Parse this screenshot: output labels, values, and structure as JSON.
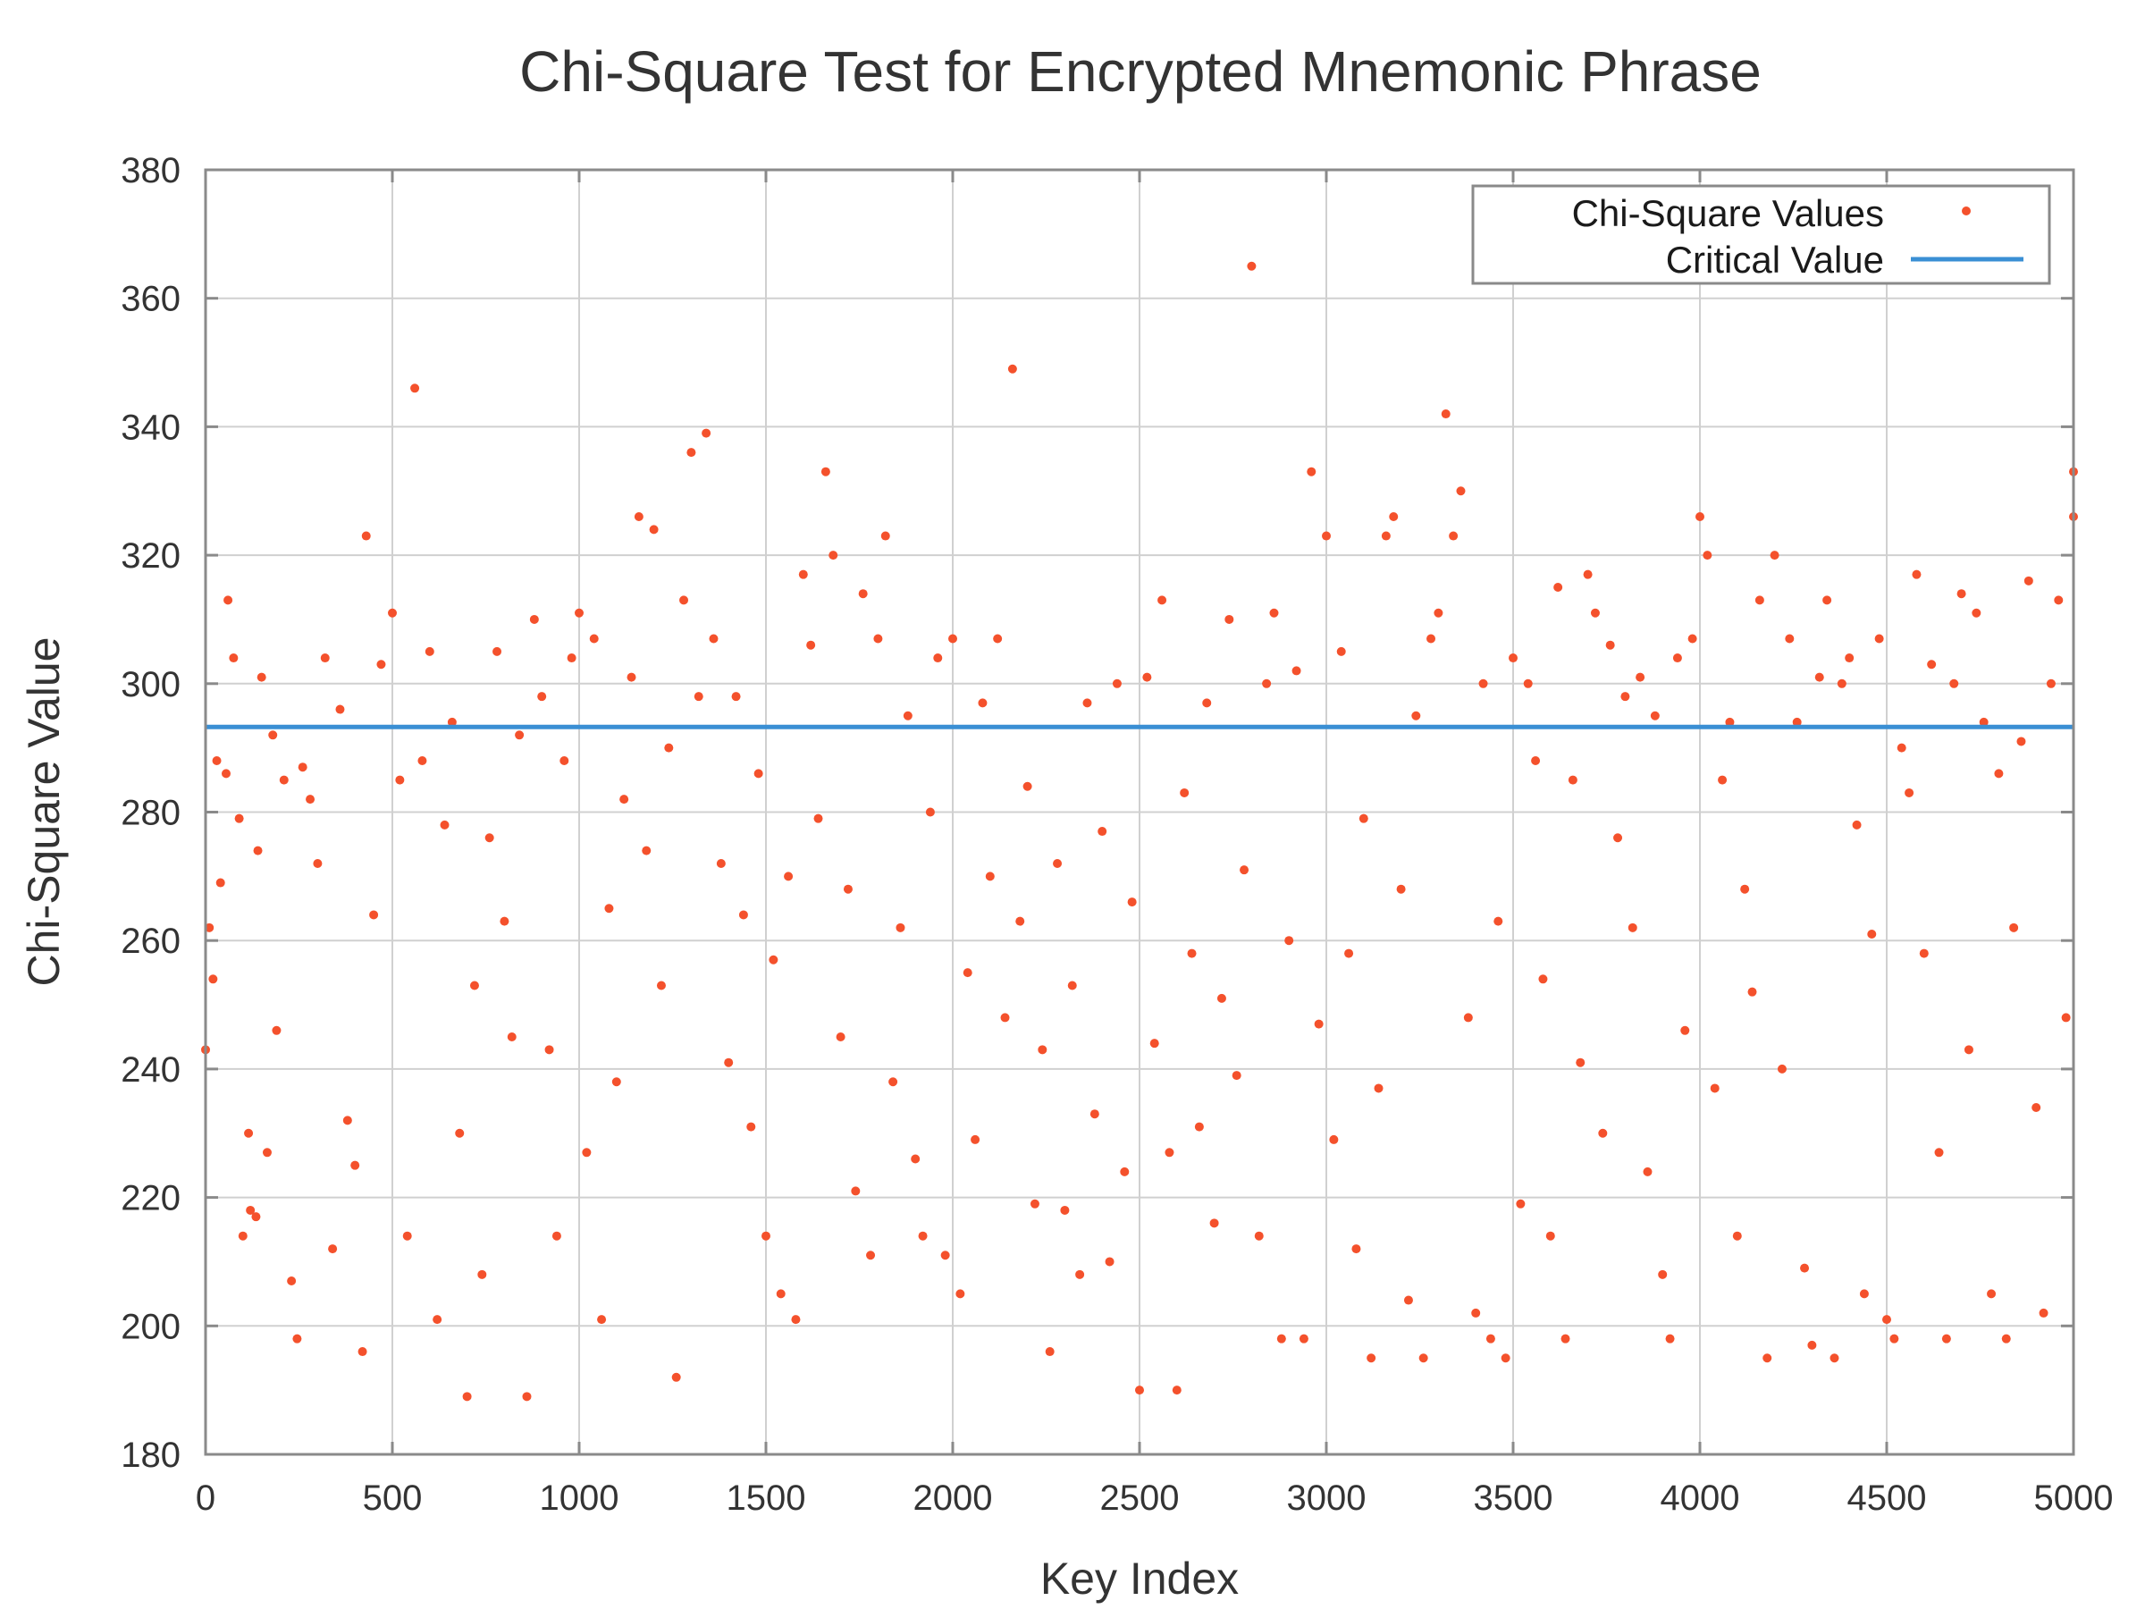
{
  "chart_data": {
    "type": "scatter",
    "title": "Chi-Square Test for Encrypted Mnemonic Phrase",
    "xlabel": "Key Index",
    "ylabel": "Chi-Square Value",
    "xlim": [
      0,
      5000
    ],
    "ylim": [
      180,
      380
    ],
    "xticks": [
      "0",
      "500",
      "1000",
      "1500",
      "2000",
      "2500",
      "3000",
      "3500",
      "4000",
      "4500",
      "5000"
    ],
    "yticks": [
      "180",
      "200",
      "220",
      "240",
      "260",
      "280",
      "300",
      "320",
      "340",
      "360",
      "380"
    ],
    "grid": true,
    "legend_position": "top-right",
    "colors": {
      "points": "#f4512c",
      "critical": "#3a8fd4"
    },
    "series": [
      {
        "name": "Chi-Square Values",
        "kind": "points",
        "note_values": "representative sample of the 5000 plotted points",
        "points": [
          [
            0,
            243
          ],
          [
            10,
            262
          ],
          [
            20,
            254
          ],
          [
            30,
            288
          ],
          [
            40,
            269
          ],
          [
            55,
            286
          ],
          [
            60,
            313
          ],
          [
            75,
            304
          ],
          [
            90,
            279
          ],
          [
            100,
            214
          ],
          [
            115,
            230
          ],
          [
            120,
            218
          ],
          [
            135,
            217
          ],
          [
            140,
            274
          ],
          [
            150,
            301
          ],
          [
            165,
            227
          ],
          [
            180,
            292
          ],
          [
            190,
            246
          ],
          [
            210,
            285
          ],
          [
            230,
            207
          ],
          [
            245,
            198
          ],
          [
            260,
            287
          ],
          [
            280,
            282
          ],
          [
            300,
            272
          ],
          [
            320,
            304
          ],
          [
            340,
            212
          ],
          [
            360,
            296
          ],
          [
            380,
            232
          ],
          [
            400,
            225
          ],
          [
            420,
            196
          ],
          [
            430,
            323
          ],
          [
            450,
            264
          ],
          [
            470,
            303
          ],
          [
            500,
            311
          ],
          [
            520,
            285
          ],
          [
            540,
            214
          ],
          [
            560,
            346
          ],
          [
            580,
            288
          ],
          [
            600,
            305
          ],
          [
            620,
            201
          ],
          [
            640,
            278
          ],
          [
            660,
            294
          ],
          [
            680,
            230
          ],
          [
            700,
            189
          ],
          [
            720,
            253
          ],
          [
            740,
            208
          ],
          [
            760,
            276
          ],
          [
            780,
            305
          ],
          [
            800,
            263
          ],
          [
            820,
            245
          ],
          [
            840,
            292
          ],
          [
            860,
            189
          ],
          [
            880,
            310
          ],
          [
            900,
            298
          ],
          [
            920,
            243
          ],
          [
            940,
            214
          ],
          [
            960,
            288
          ],
          [
            980,
            304
          ],
          [
            1000,
            311
          ],
          [
            1020,
            227
          ],
          [
            1040,
            307
          ],
          [
            1060,
            201
          ],
          [
            1080,
            265
          ],
          [
            1100,
            238
          ],
          [
            1120,
            282
          ],
          [
            1140,
            301
          ],
          [
            1160,
            326
          ],
          [
            1180,
            274
          ],
          [
            1200,
            324
          ],
          [
            1220,
            253
          ],
          [
            1240,
            290
          ],
          [
            1260,
            192
          ],
          [
            1280,
            313
          ],
          [
            1300,
            336
          ],
          [
            1320,
            298
          ],
          [
            1340,
            339
          ],
          [
            1360,
            307
          ],
          [
            1380,
            272
          ],
          [
            1400,
            241
          ],
          [
            1420,
            298
          ],
          [
            1440,
            264
          ],
          [
            1460,
            231
          ],
          [
            1480,
            286
          ],
          [
            1500,
            214
          ],
          [
            1520,
            257
          ],
          [
            1540,
            205
          ],
          [
            1560,
            270
          ],
          [
            1580,
            201
          ],
          [
            1600,
            317
          ],
          [
            1620,
            306
          ],
          [
            1640,
            279
          ],
          [
            1660,
            333
          ],
          [
            1680,
            320
          ],
          [
            1700,
            245
          ],
          [
            1720,
            268
          ],
          [
            1740,
            221
          ],
          [
            1760,
            314
          ],
          [
            1780,
            211
          ],
          [
            1800,
            307
          ],
          [
            1820,
            323
          ],
          [
            1840,
            238
          ],
          [
            1860,
            262
          ],
          [
            1880,
            295
          ],
          [
            1900,
            226
          ],
          [
            1920,
            214
          ],
          [
            1940,
            280
          ],
          [
            1960,
            304
          ],
          [
            1980,
            211
          ],
          [
            2000,
            307
          ],
          [
            2020,
            205
          ],
          [
            2040,
            255
          ],
          [
            2060,
            229
          ],
          [
            2080,
            297
          ],
          [
            2100,
            270
          ],
          [
            2120,
            307
          ],
          [
            2140,
            248
          ],
          [
            2160,
            349
          ],
          [
            2180,
            263
          ],
          [
            2200,
            284
          ],
          [
            2220,
            219
          ],
          [
            2240,
            243
          ],
          [
            2260,
            196
          ],
          [
            2280,
            272
          ],
          [
            2300,
            218
          ],
          [
            2320,
            253
          ],
          [
            2340,
            208
          ],
          [
            2360,
            297
          ],
          [
            2380,
            233
          ],
          [
            2400,
            277
          ],
          [
            2420,
            210
          ],
          [
            2440,
            300
          ],
          [
            2460,
            224
          ],
          [
            2480,
            266
          ],
          [
            2500,
            190
          ],
          [
            2520,
            301
          ],
          [
            2540,
            244
          ],
          [
            2560,
            313
          ],
          [
            2580,
            227
          ],
          [
            2600,
            190
          ],
          [
            2620,
            283
          ],
          [
            2640,
            258
          ],
          [
            2660,
            231
          ],
          [
            2680,
            297
          ],
          [
            2700,
            216
          ],
          [
            2720,
            251
          ],
          [
            2740,
            310
          ],
          [
            2760,
            239
          ],
          [
            2780,
            271
          ],
          [
            2800,
            365
          ],
          [
            2820,
            214
          ],
          [
            2840,
            300
          ],
          [
            2860,
            311
          ],
          [
            2880,
            198
          ],
          [
            2900,
            260
          ],
          [
            2920,
            302
          ],
          [
            2940,
            198
          ],
          [
            2960,
            333
          ],
          [
            2980,
            247
          ],
          [
            3000,
            323
          ],
          [
            3020,
            229
          ],
          [
            3040,
            305
          ],
          [
            3060,
            258
          ],
          [
            3080,
            212
          ],
          [
            3100,
            279
          ],
          [
            3120,
            195
          ],
          [
            3140,
            237
          ],
          [
            3160,
            323
          ],
          [
            3180,
            326
          ],
          [
            3200,
            268
          ],
          [
            3220,
            204
          ],
          [
            3240,
            295
          ],
          [
            3260,
            195
          ],
          [
            3280,
            307
          ],
          [
            3300,
            311
          ],
          [
            3320,
            342
          ],
          [
            3340,
            323
          ],
          [
            3360,
            330
          ],
          [
            3380,
            248
          ],
          [
            3400,
            202
          ],
          [
            3420,
            300
          ],
          [
            3440,
            198
          ],
          [
            3460,
            263
          ],
          [
            3480,
            195
          ],
          [
            3500,
            304
          ],
          [
            3520,
            219
          ],
          [
            3540,
            300
          ],
          [
            3560,
            288
          ],
          [
            3580,
            254
          ],
          [
            3600,
            214
          ],
          [
            3620,
            315
          ],
          [
            3640,
            198
          ],
          [
            3660,
            285
          ],
          [
            3680,
            241
          ],
          [
            3700,
            317
          ],
          [
            3720,
            311
          ],
          [
            3740,
            230
          ],
          [
            3760,
            306
          ],
          [
            3780,
            276
          ],
          [
            3800,
            298
          ],
          [
            3820,
            262
          ],
          [
            3840,
            301
          ],
          [
            3860,
            224
          ],
          [
            3880,
            295
          ],
          [
            3900,
            208
          ],
          [
            3920,
            198
          ],
          [
            3940,
            304
          ],
          [
            3960,
            246
          ],
          [
            3980,
            307
          ],
          [
            4000,
            326
          ],
          [
            4020,
            320
          ],
          [
            4040,
            237
          ],
          [
            4060,
            285
          ],
          [
            4080,
            294
          ],
          [
            4100,
            214
          ],
          [
            4120,
            268
          ],
          [
            4140,
            252
          ],
          [
            4160,
            313
          ],
          [
            4180,
            195
          ],
          [
            4200,
            320
          ],
          [
            4220,
            240
          ],
          [
            4240,
            307
          ],
          [
            4260,
            294
          ],
          [
            4280,
            209
          ],
          [
            4300,
            197
          ],
          [
            4320,
            301
          ],
          [
            4340,
            313
          ],
          [
            4360,
            195
          ],
          [
            4380,
            300
          ],
          [
            4400,
            304
          ],
          [
            4420,
            278
          ],
          [
            4440,
            205
          ],
          [
            4460,
            261
          ],
          [
            4480,
            307
          ],
          [
            4500,
            201
          ],
          [
            4520,
            198
          ],
          [
            4540,
            290
          ],
          [
            4560,
            283
          ],
          [
            4580,
            317
          ],
          [
            4600,
            258
          ],
          [
            4620,
            303
          ],
          [
            4640,
            227
          ],
          [
            4660,
            198
          ],
          [
            4680,
            300
          ],
          [
            4700,
            314
          ],
          [
            4720,
            243
          ],
          [
            4740,
            311
          ],
          [
            4760,
            294
          ],
          [
            4780,
            205
          ],
          [
            4800,
            286
          ],
          [
            4820,
            198
          ],
          [
            4840,
            262
          ],
          [
            4860,
            291
          ],
          [
            4880,
            316
          ],
          [
            4900,
            234
          ],
          [
            4920,
            202
          ],
          [
            4940,
            300
          ],
          [
            4960,
            313
          ],
          [
            4980,
            248
          ],
          [
            5000,
            333
          ],
          [
            5000,
            326
          ]
        ]
      },
      {
        "name": "Critical Value",
        "kind": "line",
        "value": 293.25
      }
    ]
  }
}
